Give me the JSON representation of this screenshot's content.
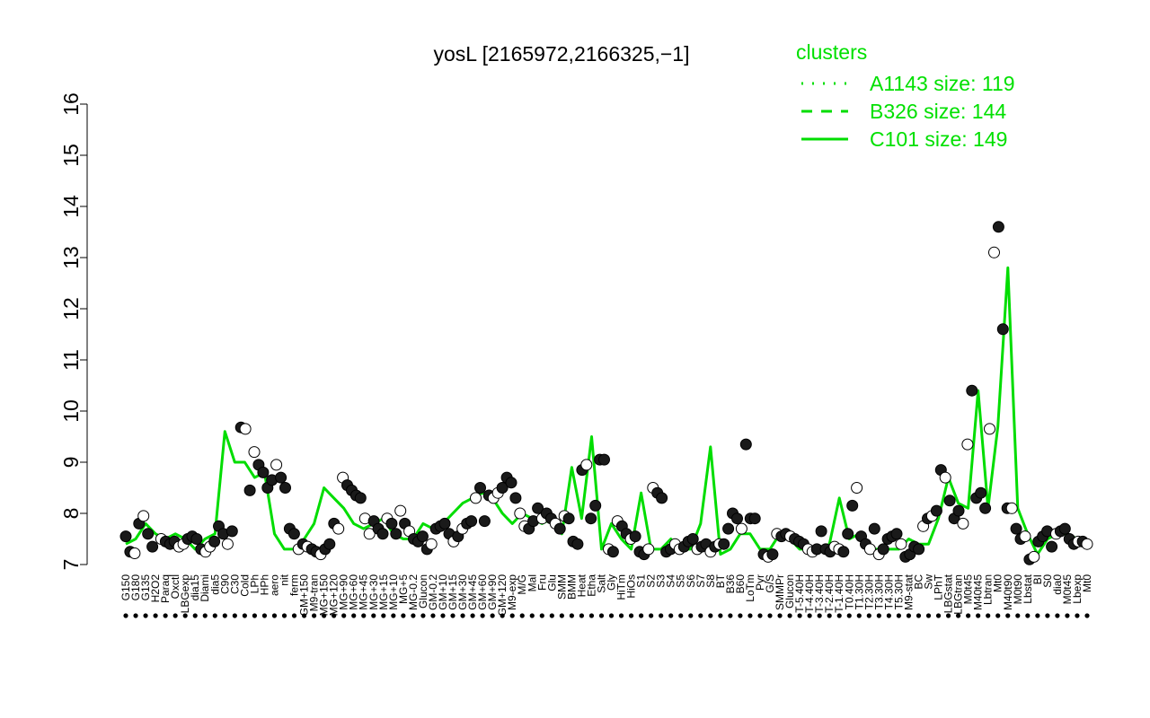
{
  "chart_data": {
    "type": "line",
    "title": "yosL [2165972,2166325,−1]",
    "xlabel": "",
    "ylabel": "",
    "ylim": [
      7,
      16
    ],
    "yticks": [
      "7",
      "8",
      "9",
      "10",
      "11",
      "12",
      "13",
      "14",
      "15",
      "16"
    ],
    "grid": false,
    "legend": {
      "title": "clusters",
      "placement": "top-right",
      "entries": [
        {
          "label": "A1143 size: 119",
          "style": "dotted",
          "color": "#00dd00"
        },
        {
          "label": "B326 size: 144",
          "style": "dashed",
          "color": "#00dd00"
        },
        {
          "label": "C101 size: 149",
          "style": "solid",
          "color": "#00dd00"
        }
      ]
    },
    "xtick_labels": [
      "G150",
      "G180",
      "G135",
      "H2O2",
      "Paraq",
      "Oxctl",
      "LBGexp",
      "dia15",
      "Diami",
      "dia5",
      "C90",
      "C30",
      "Cold",
      "LPh",
      "HPh",
      "aero",
      "nit",
      "ferm",
      "GM+150",
      "M9-tran",
      "MG+150",
      "MG+120",
      "MG+90",
      "MG+60",
      "MG+45",
      "MG+30",
      "MG+15",
      "MG+10",
      "MG+5",
      "MG-0.2",
      "Glucon",
      "GM-0.2",
      "GM+10",
      "GM+15",
      "GM+30",
      "GM+45",
      "GM+60",
      "GM+90",
      "GM+120",
      "M9-exp",
      "M/G",
      "Mal",
      "Fru",
      "Glu",
      "SMM",
      "BMM",
      "Heat",
      "Etha",
      "Salt",
      "Gly",
      "HiTm",
      "HiOs",
      "S1",
      "S2",
      "S3",
      "S4",
      "S5",
      "S6",
      "S7",
      "S8",
      "BT",
      "B36",
      "B60",
      "LoTm",
      "Pyr",
      "G/S",
      "SMMPr",
      "Glucon",
      "T-5.40H",
      "T-4.40H",
      "T-3.40H",
      "T-2.40H",
      "T-1.40H",
      "T0.40H",
      "T1.30H",
      "T2.30H",
      "T3.30H",
      "T4.30H",
      "T5.30H",
      "M9-stat",
      "BC",
      "Sw",
      "LPhT",
      "LBGstat",
      "LBGtran",
      "M0t45",
      "M40t45",
      "Lbtran",
      "Mt0",
      "M40t90",
      "M0t90",
      "Lbstat",
      "BI",
      "S0",
      "dia0",
      "M0t45",
      "Lbexp",
      "Mt0"
    ],
    "series": [
      {
        "style": "solid",
        "color": "#00dd00",
        "values": [
          7.4,
          7.5,
          7.8,
          7.6,
          7.5,
          7.6,
          7.5,
          7.3,
          7.5,
          7.6,
          9.6,
          9.0,
          9.0,
          8.7,
          8.8,
          7.6,
          7.3,
          7.3,
          7.5,
          7.8,
          8.5,
          8.3,
          8.1,
          7.8,
          7.7,
          7.8,
          7.9,
          7.6,
          7.5,
          7.5,
          7.8,
          7.7,
          7.8,
          8.0,
          8.2,
          8.3,
          8.4,
          8.3,
          8.0,
          7.8,
          8.0,
          7.9,
          7.8,
          7.9,
          7.6,
          8.9,
          7.9,
          9.5,
          7.3,
          7.8,
          7.5,
          7.3,
          8.4,
          7.3,
          7.3,
          7.5,
          7.3,
          7.3,
          7.8,
          9.3,
          7.2,
          7.3,
          7.6,
          7.6,
          7.3,
          7.3,
          7.6,
          7.5,
          7.3,
          7.3,
          7.3,
          7.4,
          8.3,
          7.5,
          7.6,
          7.3,
          7.3,
          7.3,
          7.3,
          7.5,
          7.4,
          7.4,
          7.9,
          8.7,
          8.2,
          8.1,
          10.4,
          8.1,
          9.7,
          12.8,
          8.1,
          7.6,
          7.2,
          7.5,
          7.6,
          7.6,
          7.5,
          7.4
        ]
      }
    ],
    "points": [
      [
        1,
        7.55
      ],
      [
        1.5,
        7.25
      ],
      [
        2,
        7.22
      ],
      [
        2.5,
        7.8
      ],
      [
        3,
        7.95
      ],
      [
        3.5,
        7.6
      ],
      [
        4,
        7.35
      ],
      [
        5,
        7.5
      ],
      [
        5.5,
        7.45
      ],
      [
        6,
        7.4
      ],
      [
        6.5,
        7.45
      ],
      [
        7,
        7.35
      ],
      [
        7.5,
        7.4
      ],
      [
        8,
        7.5
      ],
      [
        8.5,
        7.55
      ],
      [
        9,
        7.5
      ],
      [
        9.5,
        7.3
      ],
      [
        10,
        7.25
      ],
      [
        10.5,
        7.35
      ],
      [
        11,
        7.45
      ],
      [
        11.5,
        7.75
      ],
      [
        12,
        7.6
      ],
      [
        12.5,
        7.4
      ],
      [
        13,
        7.65
      ],
      [
        14,
        9.68
      ],
      [
        14.5,
        9.65
      ],
      [
        15,
        8.45
      ],
      [
        15.5,
        9.2
      ],
      [
        16,
        8.95
      ],
      [
        16.5,
        8.8
      ],
      [
        17,
        8.5
      ],
      [
        17.5,
        8.65
      ],
      [
        18,
        8.95
      ],
      [
        18.5,
        8.7
      ],
      [
        19,
        8.5
      ],
      [
        19.5,
        7.7
      ],
      [
        20,
        7.6
      ],
      [
        20.5,
        7.3
      ],
      [
        21,
        7.4
      ],
      [
        21.5,
        7.35
      ],
      [
        22,
        7.3
      ],
      [
        22.5,
        7.25
      ],
      [
        23,
        7.2
      ],
      [
        23.5,
        7.3
      ],
      [
        24,
        7.4
      ],
      [
        24.5,
        7.8
      ],
      [
        25,
        7.7
      ],
      [
        25.5,
        8.7
      ],
      [
        26,
        8.55
      ],
      [
        26.5,
        8.45
      ],
      [
        27,
        8.35
      ],
      [
        27.5,
        8.3
      ],
      [
        28,
        7.9
      ],
      [
        28.5,
        7.6
      ],
      [
        29,
        7.85
      ],
      [
        29.5,
        7.7
      ],
      [
        30,
        7.6
      ],
      [
        30.5,
        7.9
      ],
      [
        31,
        7.8
      ],
      [
        31.5,
        7.6
      ],
      [
        32,
        8.05
      ],
      [
        32.5,
        7.8
      ],
      [
        33,
        7.65
      ],
      [
        33.5,
        7.5
      ],
      [
        34,
        7.45
      ],
      [
        34.5,
        7.55
      ],
      [
        35,
        7.3
      ],
      [
        35.5,
        7.4
      ],
      [
        36,
        7.7
      ],
      [
        36.5,
        7.75
      ],
      [
        37,
        7.8
      ],
      [
        37.5,
        7.6
      ],
      [
        38,
        7.45
      ],
      [
        38.5,
        7.55
      ],
      [
        39,
        7.7
      ],
      [
        39.5,
        7.8
      ],
      [
        40,
        7.85
      ],
      [
        40.5,
        8.3
      ],
      [
        41,
        8.5
      ],
      [
        41.5,
        7.85
      ],
      [
        42,
        8.35
      ],
      [
        42.5,
        8.3
      ],
      [
        43,
        8.4
      ],
      [
        43.5,
        8.5
      ],
      [
        44,
        8.7
      ],
      [
        44.5,
        8.6
      ],
      [
        45,
        8.3
      ],
      [
        45.5,
        8.0
      ],
      [
        46,
        7.75
      ],
      [
        46.5,
        7.7
      ],
      [
        47,
        7.85
      ],
      [
        47.5,
        8.1
      ],
      [
        48,
        7.9
      ],
      [
        48.5,
        8.0
      ],
      [
        49,
        7.9
      ],
      [
        49.5,
        7.8
      ],
      [
        50,
        7.7
      ],
      [
        50.5,
        7.95
      ],
      [
        51,
        7.9
      ],
      [
        51.5,
        7.45
      ],
      [
        52,
        7.4
      ],
      [
        52.5,
        8.85
      ],
      [
        53,
        8.95
      ],
      [
        53.5,
        7.9
      ],
      [
        54,
        8.15
      ],
      [
        54.5,
        9.05
      ],
      [
        55,
        9.05
      ],
      [
        55.5,
        7.3
      ],
      [
        56,
        7.25
      ],
      [
        56.5,
        7.85
      ],
      [
        57,
        7.75
      ],
      [
        57.5,
        7.6
      ],
      [
        58,
        7.5
      ],
      [
        58.5,
        7.55
      ],
      [
        59,
        7.25
      ],
      [
        59.5,
        7.2
      ],
      [
        60,
        7.3
      ],
      [
        60.5,
        8.5
      ],
      [
        61,
        8.4
      ],
      [
        61.5,
        8.3
      ],
      [
        62,
        7.25
      ],
      [
        62.5,
        7.3
      ],
      [
        63,
        7.4
      ],
      [
        63.5,
        7.3
      ],
      [
        64,
        7.35
      ],
      [
        64.5,
        7.45
      ],
      [
        65,
        7.5
      ],
      [
        65.5,
        7.3
      ],
      [
        66,
        7.35
      ],
      [
        66.5,
        7.4
      ],
      [
        67,
        7.25
      ],
      [
        67.5,
        7.35
      ],
      [
        68,
        7.4
      ],
      [
        68.5,
        7.4
      ],
      [
        69,
        7.7
      ],
      [
        69.5,
        8.0
      ],
      [
        70,
        7.9
      ],
      [
        70.5,
        7.7
      ],
      [
        71,
        9.35
      ],
      [
        71.5,
        7.9
      ],
      [
        72,
        7.9
      ],
      [
        73,
        7.2
      ],
      [
        73.5,
        7.15
      ],
      [
        74,
        7.2
      ],
      [
        74.5,
        7.6
      ],
      [
        75,
        7.55
      ],
      [
        75.5,
        7.6
      ],
      [
        76,
        7.55
      ],
      [
        76.5,
        7.5
      ],
      [
        77,
        7.45
      ],
      [
        77.5,
        7.4
      ],
      [
        78,
        7.3
      ],
      [
        78.5,
        7.25
      ],
      [
        79,
        7.3
      ],
      [
        79.5,
        7.65
      ],
      [
        80,
        7.3
      ],
      [
        80.5,
        7.25
      ],
      [
        81,
        7.35
      ],
      [
        81.5,
        7.3
      ],
      [
        82,
        7.25
      ],
      [
        82.5,
        7.6
      ],
      [
        83,
        8.15
      ],
      [
        83.5,
        8.5
      ],
      [
        84,
        7.55
      ],
      [
        84.5,
        7.4
      ],
      [
        85,
        7.3
      ],
      [
        85.5,
        7.7
      ],
      [
        86,
        7.2
      ],
      [
        86.5,
        7.3
      ],
      [
        87,
        7.5
      ],
      [
        87.5,
        7.55
      ],
      [
        88,
        7.6
      ],
      [
        88.5,
        7.4
      ],
      [
        89,
        7.15
      ],
      [
        89.5,
        7.2
      ],
      [
        90,
        7.35
      ],
      [
        90.5,
        7.3
      ],
      [
        91,
        7.75
      ],
      [
        91.5,
        7.9
      ],
      [
        92,
        7.95
      ],
      [
        92.5,
        8.05
      ],
      [
        93,
        8.85
      ],
      [
        93.5,
        8.7
      ],
      [
        94,
        8.25
      ],
      [
        94.5,
        7.9
      ],
      [
        95,
        8.05
      ],
      [
        95.5,
        7.8
      ],
      [
        96,
        9.35
      ],
      [
        96.5,
        10.4
      ],
      [
        97,
        8.3
      ],
      [
        97.5,
        8.4
      ],
      [
        98,
        8.1
      ],
      [
        98.5,
        9.65
      ],
      [
        99,
        13.1
      ],
      [
        99.5,
        13.6
      ],
      [
        100,
        11.6
      ],
      [
        100.5,
        8.1
      ],
      [
        101,
        8.1
      ],
      [
        101.5,
        7.7
      ],
      [
        102,
        7.5
      ],
      [
        102.5,
        7.55
      ],
      [
        103,
        7.1
      ],
      [
        103.5,
        7.15
      ],
      [
        104,
        7.45
      ],
      [
        104.5,
        7.55
      ],
      [
        105,
        7.65
      ],
      [
        105.5,
        7.35
      ],
      [
        106,
        7.6
      ],
      [
        106.5,
        7.65
      ],
      [
        107,
        7.7
      ],
      [
        107.5,
        7.5
      ],
      [
        108,
        7.4
      ],
      [
        108.5,
        7.45
      ],
      [
        109,
        7.45
      ],
      [
        109.5,
        7.4
      ]
    ]
  }
}
